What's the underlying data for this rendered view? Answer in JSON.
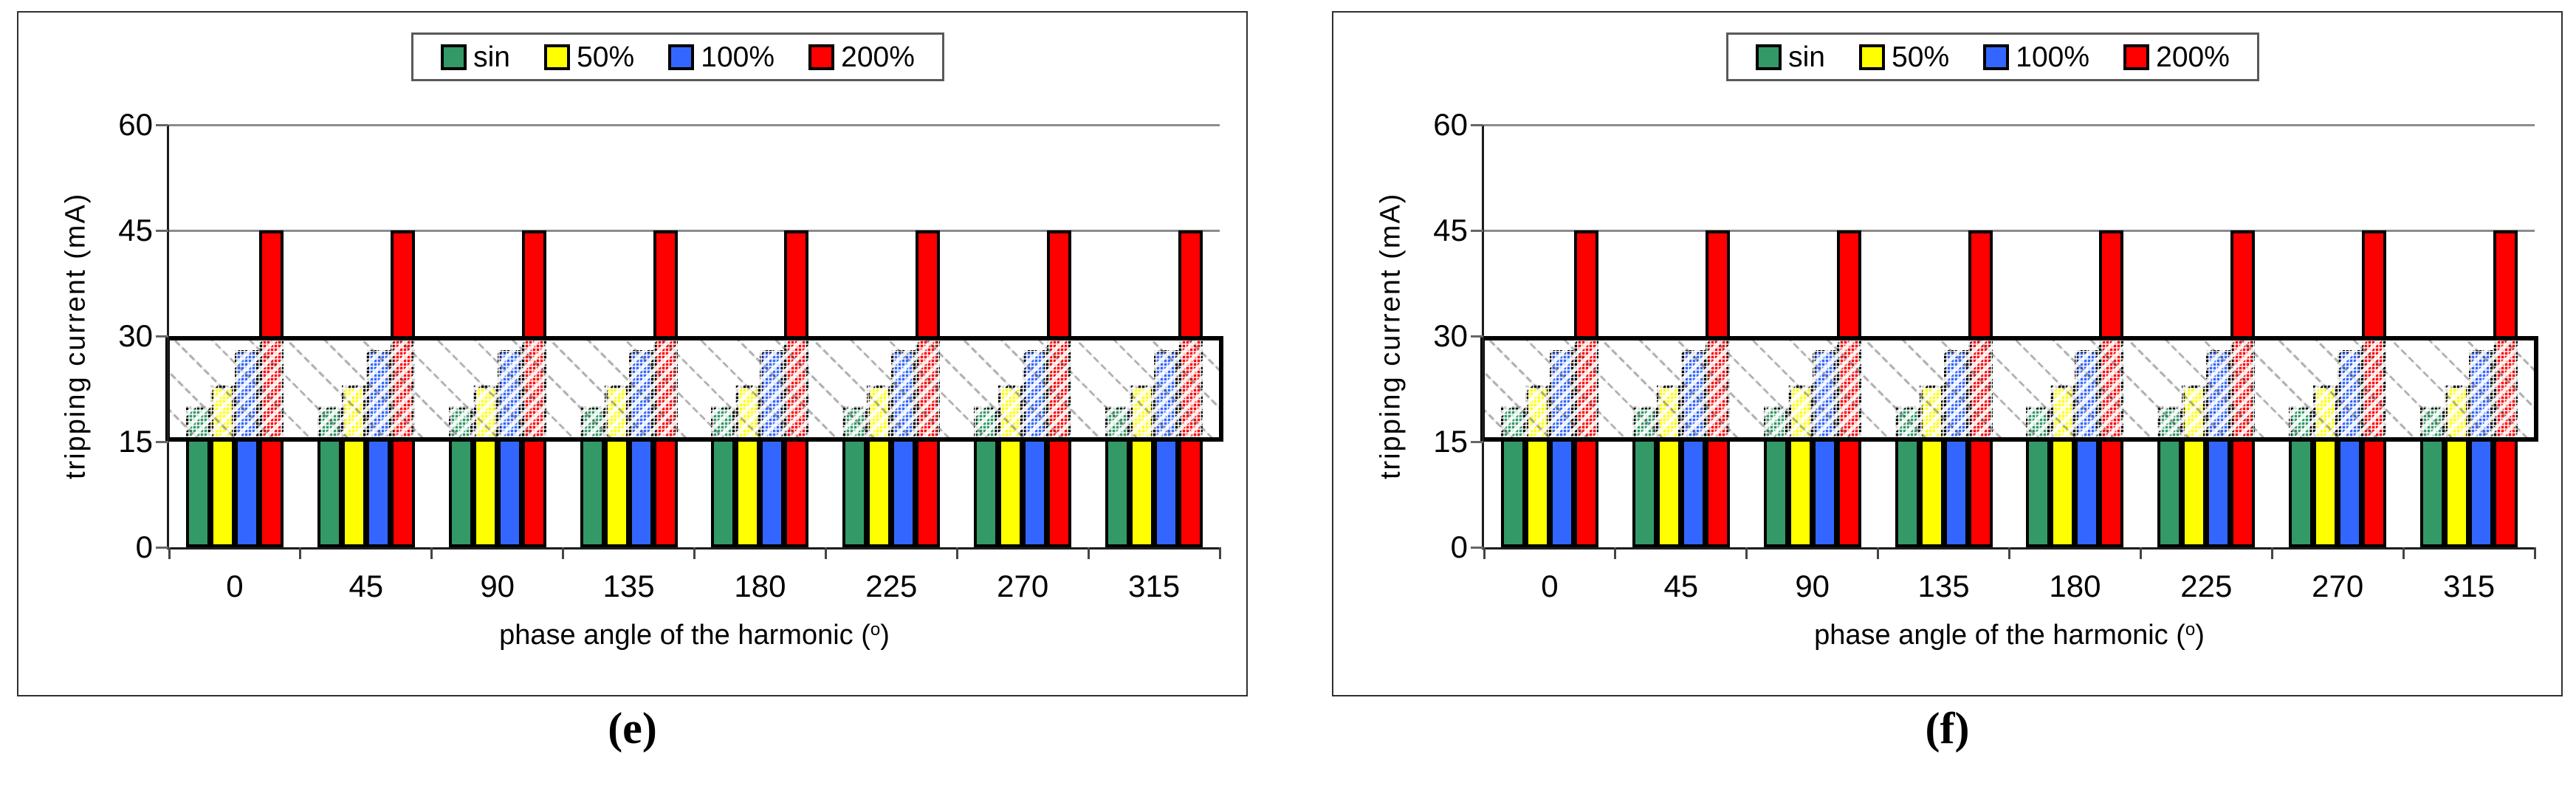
{
  "figure": {
    "background": "#ffffff",
    "panels": [
      {
        "caption": "(e)"
      },
      {
        "caption": "(f)"
      }
    ]
  },
  "chart_data": [
    {
      "type": "bar",
      "title": "",
      "categories": [
        "0",
        "45",
        "90",
        "135",
        "180",
        "225",
        "270",
        "315"
      ],
      "series": [
        {
          "name": "sin",
          "color": "#339966",
          "values": [
            20,
            20,
            20,
            20,
            20,
            20,
            20,
            20
          ]
        },
        {
          "name": "50%",
          "color": "#FFFF00",
          "values": [
            23,
            23,
            23,
            23,
            23,
            23,
            23,
            23
          ]
        },
        {
          "name": "100%",
          "color": "#3366FF",
          "values": [
            28,
            28,
            28,
            28,
            28,
            28,
            28,
            28
          ]
        },
        {
          "name": "200%",
          "color": "#FF0000",
          "values": [
            45,
            45,
            45,
            45,
            45,
            45,
            45,
            45
          ]
        }
      ],
      "xlabel_prefix": "phase angle of the harmonic (",
      "xlabel_sup": "o",
      "xlabel_suffix": ")",
      "ylabel": "tripping current (mA)",
      "ylim": [
        0,
        60
      ],
      "yticks": [
        0,
        15,
        30,
        45,
        60
      ],
      "gridlines_visible_at": [
        45,
        60
      ],
      "highlight_band": {
        "from": 15,
        "to": 30,
        "style": "black-bordered hatched rectangle"
      },
      "legend_position": "top"
    },
    {
      "type": "bar",
      "title": "",
      "categories": [
        "0",
        "45",
        "90",
        "135",
        "180",
        "225",
        "270",
        "315"
      ],
      "series": [
        {
          "name": "sin",
          "color": "#339966",
          "values": [
            20,
            20,
            20,
            20,
            20,
            20,
            20,
            20
          ]
        },
        {
          "name": "50%",
          "color": "#FFFF00",
          "values": [
            23,
            23,
            23,
            23,
            23,
            23,
            23,
            23
          ]
        },
        {
          "name": "100%",
          "color": "#3366FF",
          "values": [
            28,
            28,
            28,
            28,
            28,
            28,
            28,
            28
          ]
        },
        {
          "name": "200%",
          "color": "#FF0000",
          "values": [
            45,
            45,
            45,
            45,
            45,
            45,
            45,
            45
          ]
        }
      ],
      "xlabel_prefix": "phase angle of the harmonic (",
      "xlabel_sup": "o",
      "xlabel_suffix": ")",
      "ylabel": "tripping current (mA)",
      "ylim": [
        0,
        60
      ],
      "yticks": [
        0,
        15,
        30,
        45,
        60
      ],
      "gridlines_visible_at": [
        45,
        60
      ],
      "highlight_band": {
        "from": 15,
        "to": 30,
        "style": "black-bordered hatched rectangle"
      },
      "legend_position": "top"
    }
  ]
}
